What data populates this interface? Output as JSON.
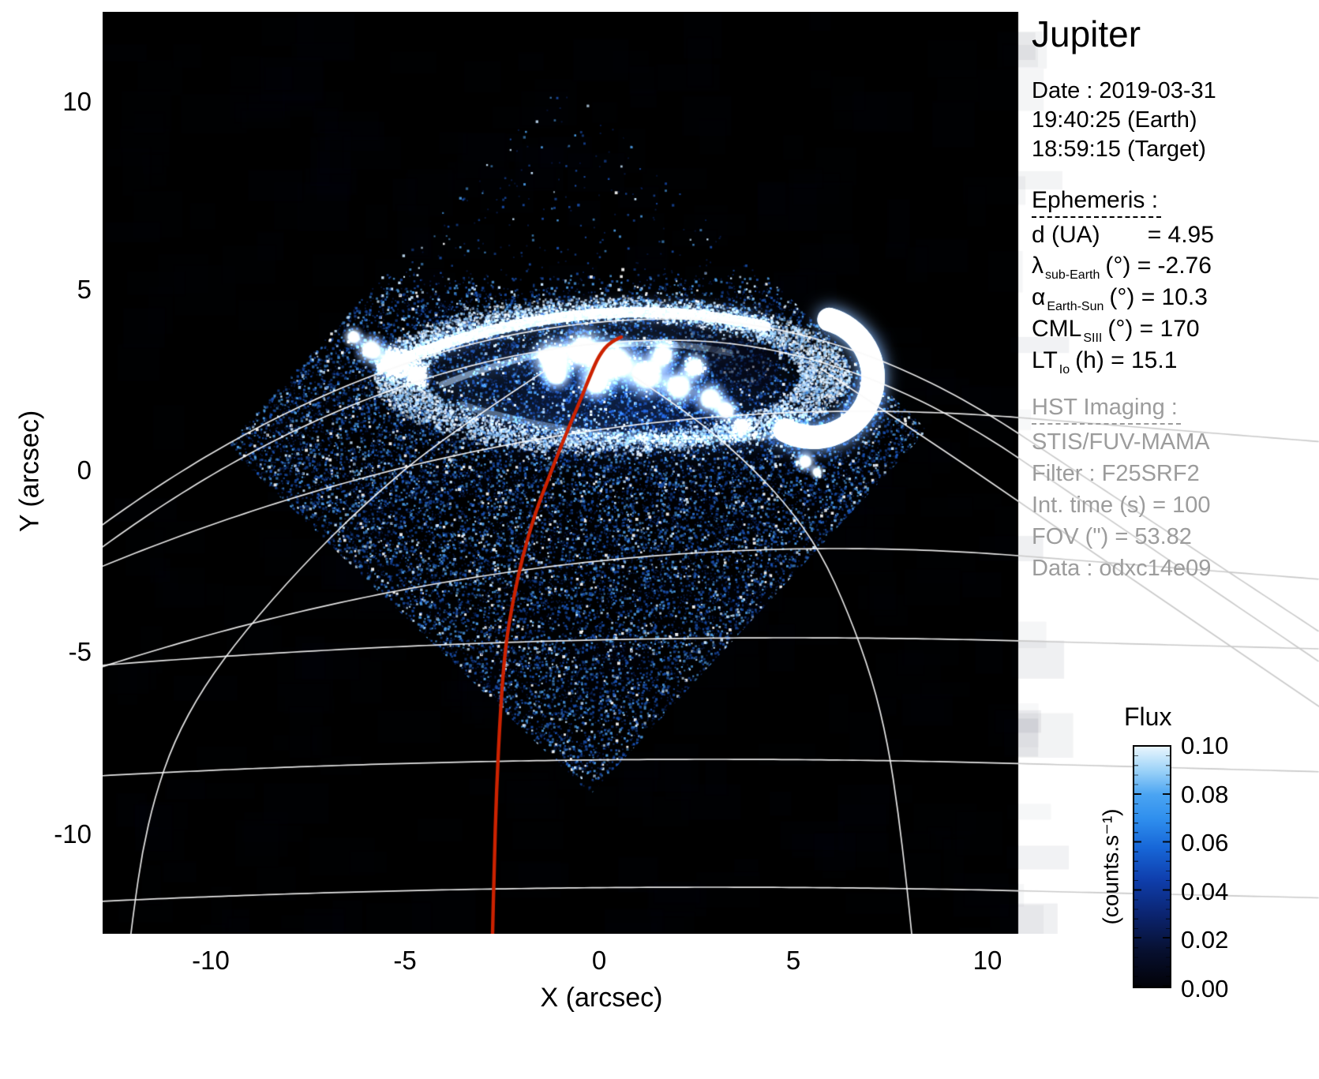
{
  "title": "Jupiter",
  "date": {
    "line1": "Date : 2019-03-31",
    "line2": "19:40:25 (Earth)",
    "line3": "18:59:15 (Target)"
  },
  "ephemeris": {
    "header": "Ephemeris :",
    "rows": [
      {
        "sym": "d (UA)",
        "sub": "",
        "rest": "= 4.95"
      },
      {
        "sym": "λ",
        "sub": "sub-Earth",
        "rest": "(°) = -2.76"
      },
      {
        "sym": "α",
        "sub": "Earth-Sun",
        "rest": "(°) = 10.3"
      },
      {
        "sym": "CML",
        "sub": "SIII",
        "rest": "(°) = 170"
      },
      {
        "sym": "LT",
        "sub": "Io",
        "rest": "(h) = 15.1"
      }
    ]
  },
  "hst": {
    "header": "HST Imaging :",
    "rows": [
      "STIS/FUV-MAMA",
      "Filter : F25SRF2",
      "Int. time (s) = 100",
      "FOV (\") = 53.82",
      "Data : odxc14e09"
    ]
  },
  "colorbar": {
    "title": "Flux",
    "unit": "(counts.s⁻¹)",
    "labels": [
      "0.10",
      "0.08",
      "0.06",
      "0.04",
      "0.02",
      "0.00"
    ]
  },
  "axes": {
    "x": {
      "label": "X (arcsec)",
      "ticks": [
        "-10",
        "-5",
        "0",
        "5",
        "10"
      ]
    },
    "y": {
      "label": "Y (arcsec)",
      "ticks": [
        "10",
        "5",
        "0",
        "-5",
        "-10"
      ]
    }
  },
  "chart_data": {
    "type": "heatmap",
    "title": "Jupiter",
    "xlabel": "X (arcsec)",
    "ylabel": "Y (arcsec)",
    "xlim": [
      -12.8,
      10.8
    ],
    "ylim": [
      -12.6,
      12.5
    ],
    "x_ticks": [
      -10,
      -5,
      0,
      5,
      10
    ],
    "y_ticks": [
      10,
      5,
      0,
      -5,
      -10
    ],
    "grid": false,
    "colorbar": {
      "title": "Flux",
      "unit": "counts/s",
      "min": 0.0,
      "max": 0.1,
      "ticks": [
        0.1,
        0.08,
        0.06,
        0.04,
        0.02,
        0.0
      ],
      "colormap": "black-darkblue-blue-lightblue-white"
    },
    "image_content": {
      "description": "Far-UV image of Jupiter's northern aurora: diamond-shaped detector footprint filled with blue photon-count speckle; bright white auroral main oval spanning x≈-5.5..7 arcsec near y≈2..4.5 arcsec with a thick bright crescent on the right (dusk) side, bright patchy core emission, fainter secondary spot near (5.5,1.5) arcsec; white planetary limb and lat/lon graticule arcs; red central-meridian track ending near the pole",
      "detector_footprint_diamond_arcsec": [
        [
          -0.9,
          10.2
        ],
        [
          8.5,
          1.1
        ],
        [
          -0.2,
          -8.3
        ],
        [
          -9.6,
          0.7
        ]
      ],
      "auroral_oval_center_arcsec": [
        0.3,
        3.2
      ],
      "overlays": [
        {
          "name": "planetary graticule and limb",
          "color": "#ffffff"
        },
        {
          "name": "central meridian track",
          "color": "#cc2200",
          "path_arcsec": [
            [
              0.57,
              4.1
            ],
            [
              -0.2,
              2.5
            ],
            [
              -1.3,
              0.9
            ],
            [
              -2.0,
              -1.1
            ],
            [
              -2.4,
              -3.2
            ],
            [
              -2.6,
              -5.3
            ],
            [
              -2.7,
              -8.2
            ],
            [
              -2.75,
              -12.0
            ]
          ]
        }
      ]
    },
    "ephemeris": {
      "d_UA": 4.95,
      "lambda_sub_earth_deg": -2.76,
      "alpha_earth_sun_deg": 10.3,
      "CML_SIII_deg": 170,
      "LT_Io_h": 15.1
    },
    "hst_imaging": {
      "instrument": "STIS/FUV-MAMA",
      "filter": "F25SRF2",
      "int_time_s": 100,
      "fov_arcsec": 53.82,
      "data_id": "odxc14e09"
    },
    "datetime": {
      "date": "2019-03-31",
      "time_earth": "19:40:25",
      "time_target": "18:59:15"
    }
  }
}
